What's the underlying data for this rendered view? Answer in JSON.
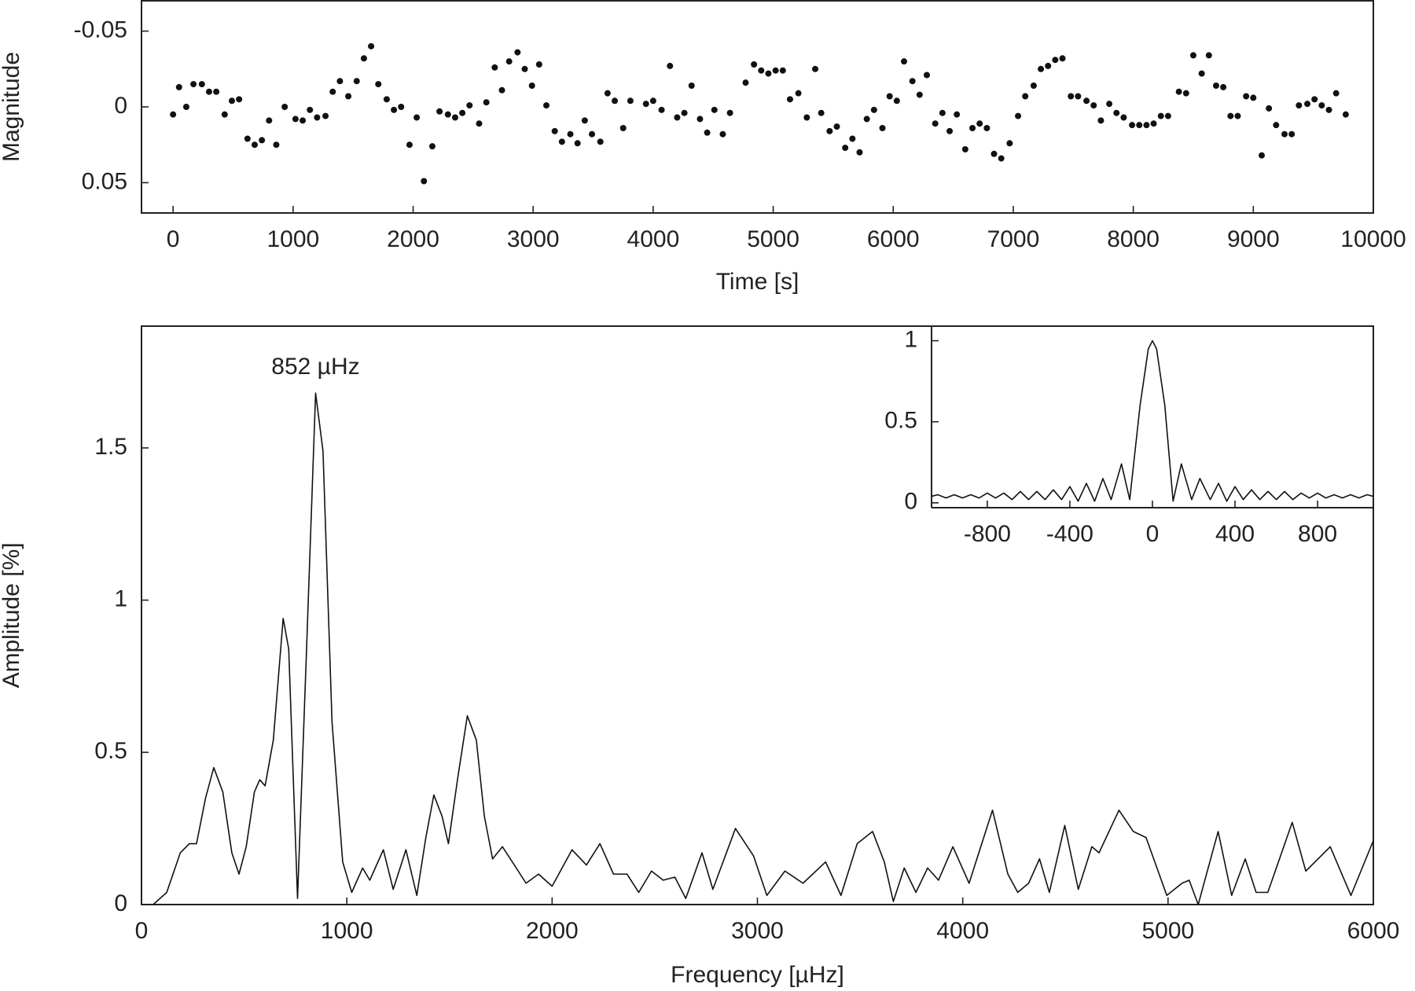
{
  "chart_data": [
    {
      "type": "scatter",
      "x_label": "Time [s]",
      "y_label": "Magnitude",
      "xlim": [
        -263,
        10000
      ],
      "xticks": [
        0,
        1000,
        2000,
        3000,
        4000,
        5000,
        6000,
        7000,
        8000,
        9000,
        10000
      ],
      "ylim": [
        0.07,
        -0.07
      ],
      "yticks": [
        -0.05,
        0,
        0.05
      ],
      "color": "#111111",
      "x": [
        0,
        50,
        110,
        170,
        240,
        300,
        360,
        430,
        490,
        550,
        620,
        680,
        740,
        800,
        860,
        930,
        1020,
        1080,
        1140,
        1200,
        1270,
        1330,
        1390,
        1460,
        1530,
        1590,
        1650,
        1710,
        1780,
        1840,
        1900,
        1970,
        2030,
        2090,
        2160,
        2220,
        2290,
        2350,
        2410,
        2470,
        2550,
        2610,
        2680,
        2740,
        2800,
        2870,
        2930,
        2990,
        3050,
        3110,
        3180,
        3240,
        3310,
        3370,
        3430,
        3490,
        3560,
        3620,
        3680,
        3750,
        3810,
        3940,
        4000,
        4070,
        4140,
        4200,
        4260,
        4320,
        4390,
        4450,
        4510,
        4580,
        4640,
        4770,
        4840,
        4900,
        4960,
        5020,
        5080,
        5140,
        5210,
        5280,
        5350,
        5400,
        5470,
        5530,
        5600,
        5660,
        5720,
        5780,
        5840,
        5910,
        5970,
        6030,
        6090,
        6160,
        6220,
        6280,
        6350,
        6410,
        6470,
        6530,
        6600,
        6660,
        6720,
        6780,
        6840,
        6900,
        6970,
        7040,
        7100,
        7170,
        7230,
        7290,
        7350,
        7410,
        7480,
        7540,
        7610,
        7670,
        7730,
        7800,
        7860,
        7920,
        7990,
        8050,
        8110,
        8170,
        8230,
        8290,
        8380,
        8440,
        8500,
        8570,
        8630,
        8690,
        8750,
        8810,
        8870,
        8940,
        9000,
        9070,
        9130,
        9190,
        9260,
        9320,
        9380,
        9450,
        9510,
        9570,
        9630,
        9690,
        9770
      ],
      "values": [
        0.005,
        -0.013,
        0,
        -0.015,
        -0.015,
        -0.01,
        -0.01,
        0.005,
        -0.004,
        -0.005,
        0.021,
        0.025,
        0.022,
        0.009,
        0.025,
        0,
        0.008,
        0.009,
        0.002,
        0.007,
        0.006,
        -0.01,
        -0.017,
        -0.007,
        -0.017,
        -0.032,
        -0.04,
        -0.015,
        -0.005,
        0.002,
        0,
        0.025,
        0.007,
        0.049,
        0.026,
        0.003,
        0.005,
        0.007,
        0.004,
        -0.001,
        0.011,
        -0.003,
        -0.026,
        -0.011,
        -0.03,
        -0.036,
        -0.025,
        -0.014,
        -0.028,
        -0.001,
        0.016,
        0.023,
        0.018,
        0.024,
        0.009,
        0.018,
        0.023,
        -0.009,
        -0.004,
        0.014,
        -0.004,
        -0.002,
        -0.004,
        0.002,
        -0.027,
        0.007,
        0.004,
        -0.014,
        0.008,
        0.017,
        0.002,
        0.018,
        0.004,
        -0.016,
        -0.028,
        -0.024,
        -0.022,
        -0.024,
        -0.024,
        -0.005,
        -0.009,
        0.007,
        -0.025,
        0.004,
        0.016,
        0.013,
        0.027,
        0.021,
        0.03,
        0.008,
        0.002,
        0.014,
        -0.007,
        -0.004,
        -0.03,
        -0.017,
        -0.008,
        -0.021,
        0.011,
        0.004,
        0.016,
        0.005,
        0.028,
        0.014,
        0.011,
        0.014,
        0.031,
        0.034,
        0.024,
        0.006,
        -0.007,
        -0.014,
        -0.025,
        -0.027,
        -0.031,
        -0.032,
        -0.007,
        -0.007,
        -0.004,
        -0.001,
        0.009,
        -0.002,
        0.004,
        0.007,
        0.012,
        0.012,
        0.012,
        0.011,
        0.006,
        0.006,
        -0.01,
        -0.009,
        -0.034,
        -0.022,
        -0.034,
        -0.014,
        -0.013,
        0.006,
        0.006,
        -0.007,
        -0.006,
        0.032,
        0.001,
        0.012,
        0.018,
        0.018,
        -0.001,
        -0.002,
        -0.005,
        -0.001,
        0.002,
        -0.009,
        0.005
      ]
    },
    {
      "type": "line",
      "x_label": "Frequency [µHz]",
      "y_label": "Amplitude [%]",
      "annotations": [
        {
          "text": "852 µHz"
        }
      ],
      "xlim": [
        0,
        6000
      ],
      "xticks": [
        0,
        1000,
        2000,
        3000,
        4000,
        5000,
        6000
      ],
      "ylim": [
        0,
        1.9
      ],
      "yticks": [
        0,
        0.5,
        1,
        1.5
      ],
      "color": "#111111",
      "x": [
        57,
        123,
        189,
        233,
        268,
        312,
        352,
        396,
        440,
        475,
        510,
        550,
        576,
        602,
        642,
        690,
        717,
        760,
        804,
        848,
        884,
        928,
        980,
        1024,
        1077,
        1112,
        1178,
        1226,
        1288,
        1341,
        1385,
        1424,
        1464,
        1495,
        1539,
        1587,
        1631,
        1670,
        1710,
        1758,
        1816,
        1873,
        1934,
        2000,
        2097,
        2167,
        2233,
        2299,
        2365,
        2422,
        2484,
        2541,
        2598,
        2651,
        2730,
        2783,
        2893,
        2981,
        3046,
        3134,
        3222,
        3332,
        3407,
        3486,
        3561,
        3618,
        3662,
        3715,
        3772,
        3829,
        3882,
        3952,
        4031,
        4145,
        4220,
        4268,
        4321,
        4374,
        4422,
        4497,
        4563,
        4629,
        4664,
        4761,
        4831,
        4893,
        4994,
        5068,
        5103,
        5147,
        5244,
        5310,
        5376,
        5429,
        5486,
        5605,
        5671,
        5790,
        5891,
        6000
      ],
      "values": [
        0,
        0.04,
        0.17,
        0.2,
        0.2,
        0.35,
        0.45,
        0.37,
        0.17,
        0.1,
        0.19,
        0.37,
        0.41,
        0.39,
        0.54,
        0.94,
        0.84,
        0.02,
        0.84,
        1.68,
        1.49,
        0.6,
        0.14,
        0.04,
        0.12,
        0.08,
        0.18,
        0.05,
        0.18,
        0.03,
        0.22,
        0.36,
        0.29,
        0.2,
        0.41,
        0.62,
        0.54,
        0.29,
        0.15,
        0.19,
        0.13,
        0.07,
        0.1,
        0.06,
        0.18,
        0.13,
        0.2,
        0.1,
        0.1,
        0.04,
        0.11,
        0.08,
        0.09,
        0.02,
        0.17,
        0.05,
        0.25,
        0.16,
        0.03,
        0.11,
        0.07,
        0.14,
        0.03,
        0.2,
        0.24,
        0.14,
        0.01,
        0.12,
        0.04,
        0.12,
        0.08,
        0.19,
        0.07,
        0.31,
        0.1,
        0.04,
        0.07,
        0.15,
        0.04,
        0.26,
        0.05,
        0.19,
        0.17,
        0.31,
        0.24,
        0.22,
        0.03,
        0.07,
        0.08,
        0,
        0.24,
        0.03,
        0.15,
        0.04,
        0.04,
        0.27,
        0.11,
        0.19,
        0.03,
        0.21
      ]
    },
    {
      "type": "line",
      "xlim": [
        -1070,
        1070
      ],
      "xticks": [
        -800,
        -400,
        0,
        400,
        800
      ],
      "ylim": [
        -0.03,
        1.09
      ],
      "yticks": [
        0,
        0.5,
        1
      ],
      "color": "#111111",
      "x": [
        -1070,
        -1040,
        -1000,
        -960,
        -920,
        -880,
        -840,
        -800,
        -760,
        -720,
        -680,
        -640,
        -600,
        -560,
        -520,
        -480,
        -440,
        -400,
        -360,
        -320,
        -280,
        -240,
        -200,
        -150,
        -110,
        -60,
        -20,
        0,
        20,
        60,
        100,
        140,
        190,
        230,
        280,
        320,
        360,
        400,
        440,
        480,
        520,
        560,
        600,
        640,
        680,
        720,
        760,
        800,
        840,
        880,
        920,
        960,
        1000,
        1040,
        1070
      ],
      "values": [
        0.04,
        0.05,
        0.03,
        0.05,
        0.03,
        0.05,
        0.03,
        0.06,
        0.03,
        0.06,
        0.02,
        0.07,
        0.02,
        0.07,
        0.02,
        0.08,
        0.02,
        0.1,
        0.01,
        0.12,
        0.01,
        0.15,
        0.02,
        0.24,
        0.02,
        0.6,
        0.95,
        1,
        0.95,
        0.6,
        0.01,
        0.24,
        0.02,
        0.15,
        0.02,
        0.12,
        0.01,
        0.1,
        0.02,
        0.08,
        0.02,
        0.07,
        0.02,
        0.07,
        0.02,
        0.06,
        0.03,
        0.06,
        0.03,
        0.05,
        0.03,
        0.05,
        0.03,
        0.05,
        0.04
      ]
    }
  ]
}
